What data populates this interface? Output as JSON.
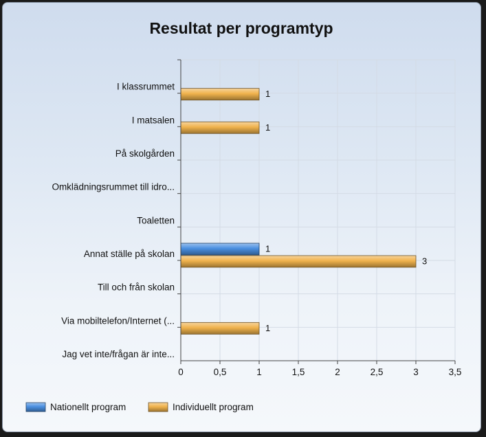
{
  "chart_data": {
    "type": "bar",
    "orientation": "horizontal",
    "title": "Resultat per programtyp",
    "categories": [
      "I klassrummet",
      "I matsalen",
      "På skolgården",
      "Omklädningsrummet till idro...",
      "Toaletten",
      "Annat ställe på skolan",
      "Till och från skolan",
      "Via mobiltelefon/Internet (...",
      "Jag vet inte/frågan är inte..."
    ],
    "series": [
      {
        "name": "Nationellt program",
        "color": "#4a8fe0",
        "values": [
          null,
          null,
          null,
          null,
          null,
          1,
          null,
          null,
          null
        ]
      },
      {
        "name": "Individuellt program",
        "color": "#f0b24c",
        "values": [
          1,
          1,
          null,
          null,
          null,
          3,
          null,
          1,
          null
        ]
      }
    ],
    "xlim": [
      0,
      3.5
    ],
    "xticks": [
      0,
      0.5,
      1,
      1.5,
      2,
      2.5,
      3,
      3.5
    ],
    "xtick_labels": [
      "0",
      "0,5",
      "1",
      "1,5",
      "2",
      "2,5",
      "3",
      "3,5"
    ],
    "grid": true,
    "legend_position": "bottom-left",
    "xlabel": "",
    "ylabel": ""
  }
}
